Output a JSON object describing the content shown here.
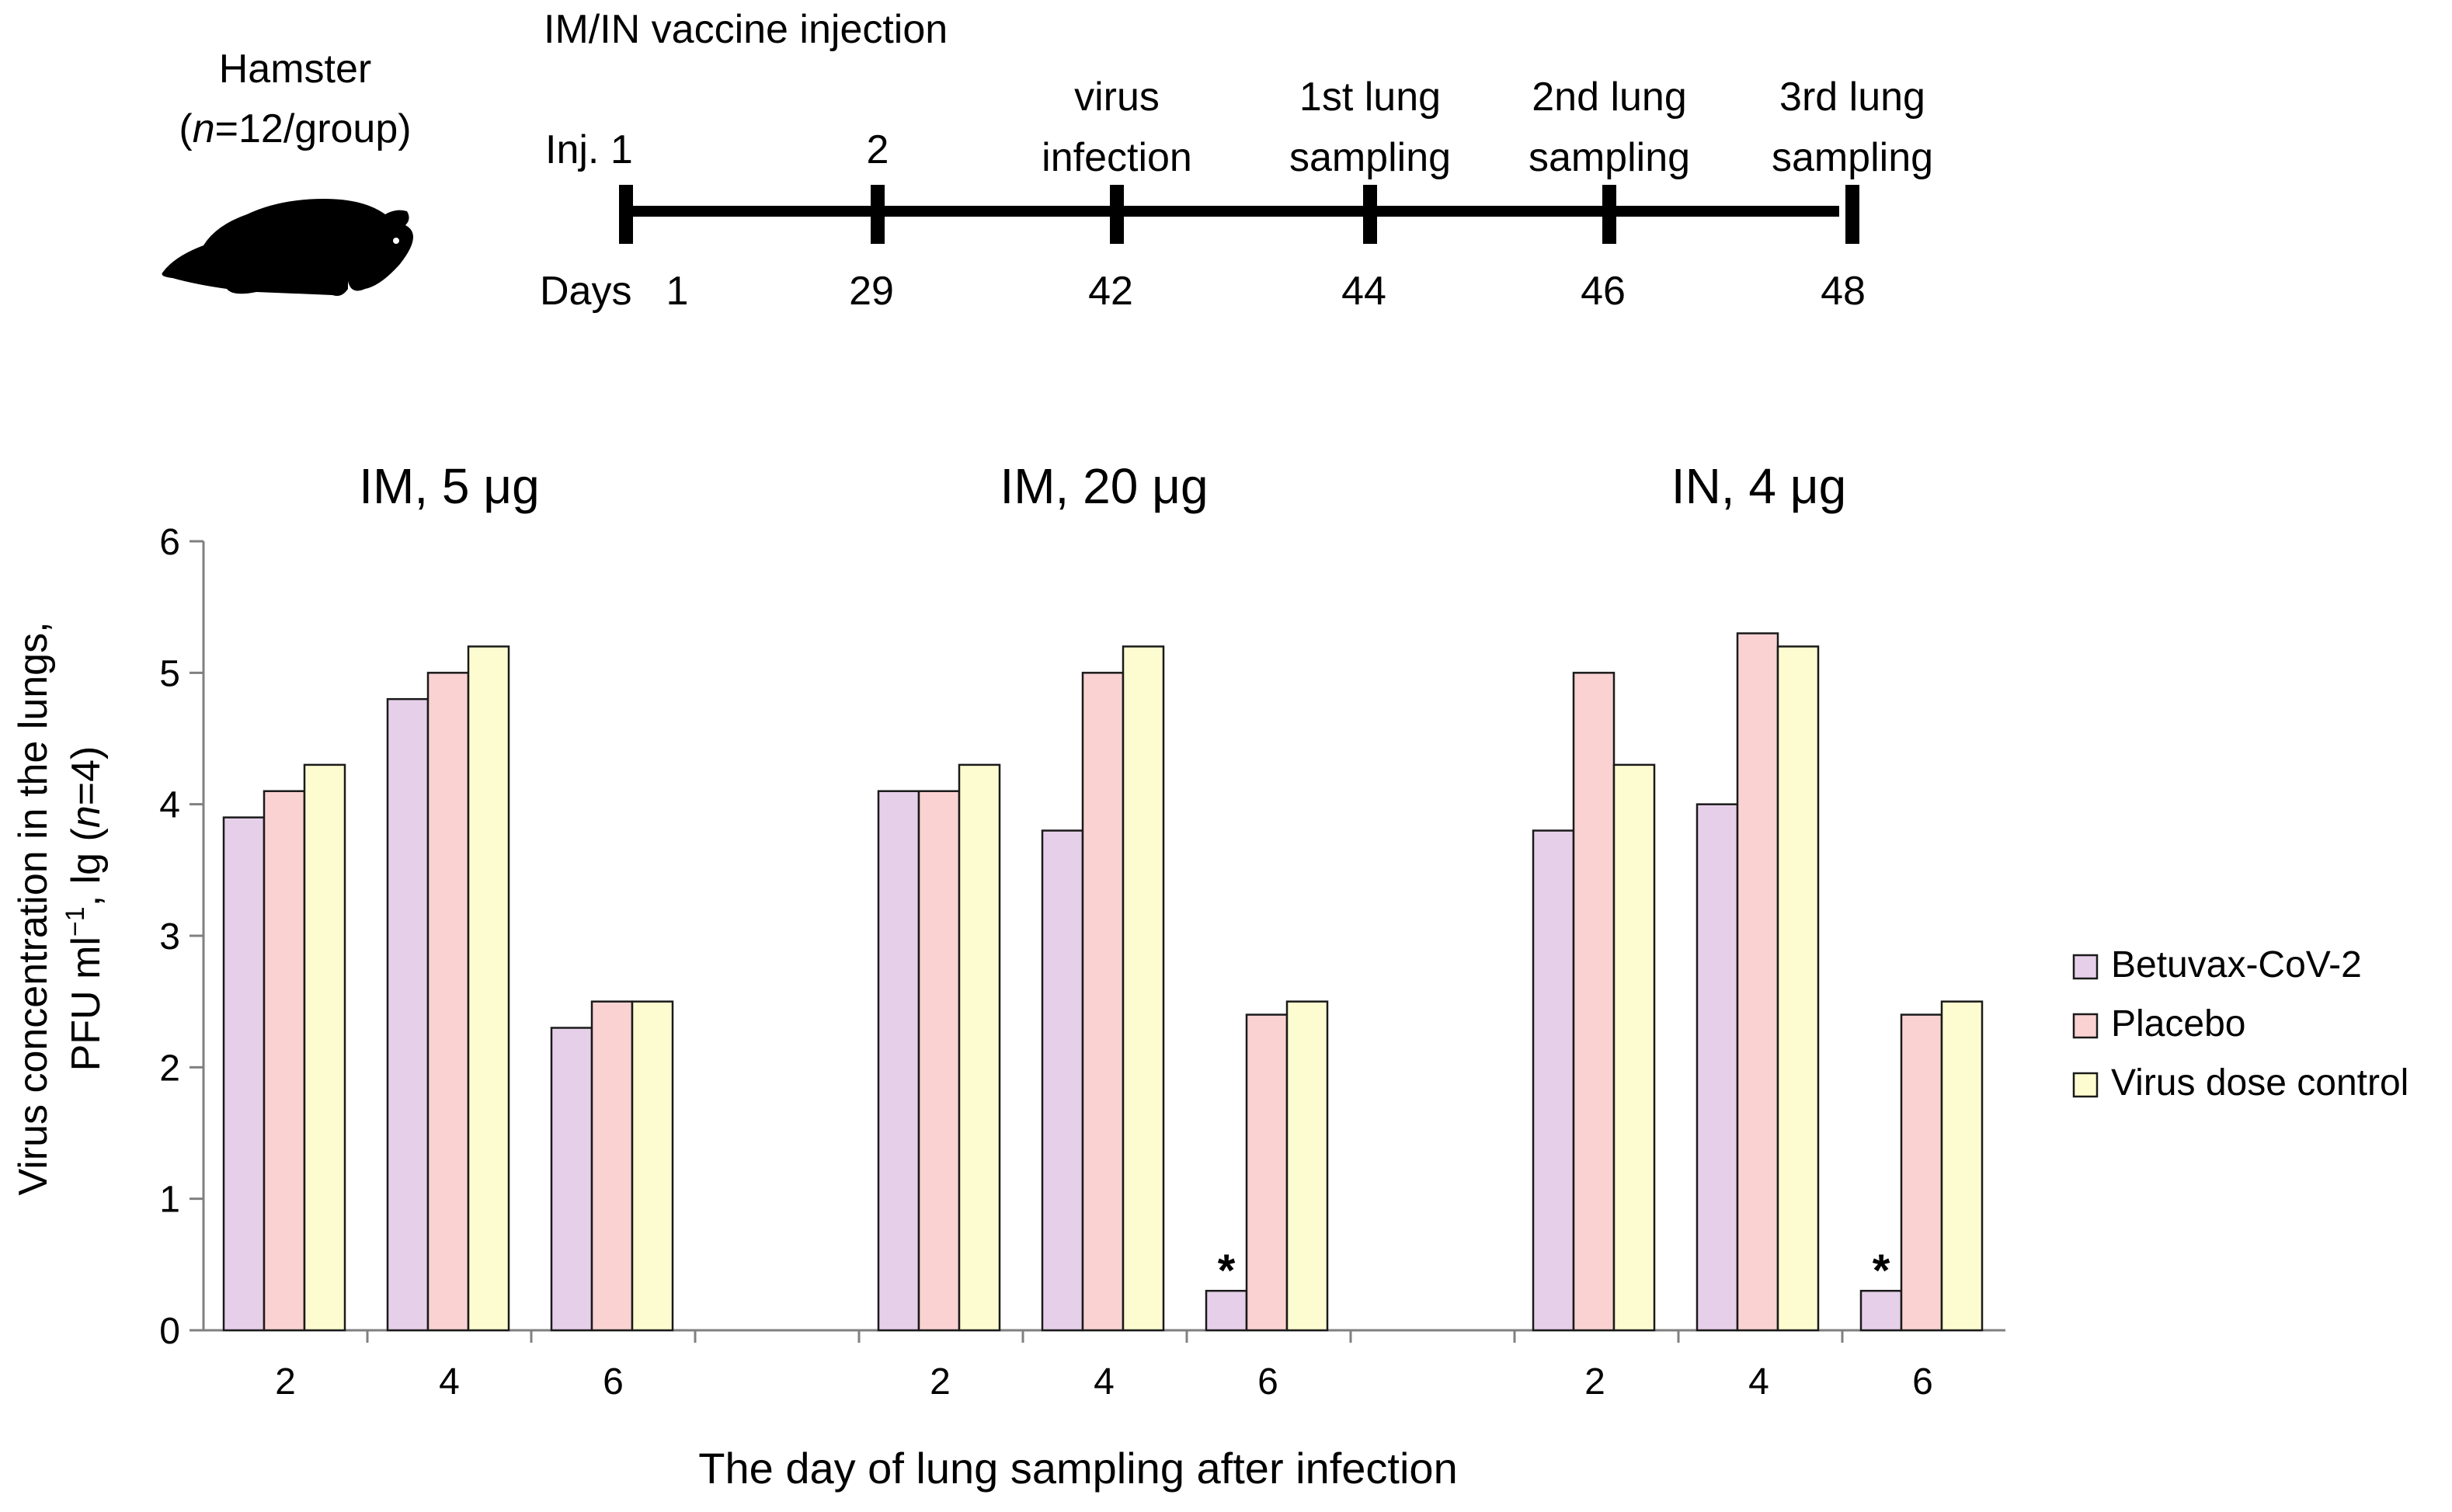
{
  "timeline": {
    "animal_label": "Hamster",
    "group_size": {
      "n_italic": "n",
      "rest": "=12/group"
    },
    "group_open": "(",
    "group_close": ")",
    "title": "IM/IN vaccine injection",
    "days_prefix": "Days",
    "events": [
      {
        "label_lines": [
          "Inj. 1"
        ],
        "day": 1
      },
      {
        "label_lines": [
          "2"
        ],
        "day": 29
      },
      {
        "label_lines": [
          "virus",
          "infection"
        ],
        "day": 42
      },
      {
        "label_lines": [
          "1st lung",
          "sampling"
        ],
        "day": 44
      },
      {
        "label_lines": [
          "2nd lung",
          "sampling"
        ],
        "day": 46
      },
      {
        "label_lines": [
          "3rd lung",
          "sampling"
        ],
        "day": 48
      }
    ]
  },
  "chart_data": {
    "type": "bar",
    "ylabel_line1": "Virus concentration in the lungs,",
    "ylabel_line2": {
      "pre": "PFU ml",
      "sup": "−1",
      "mid": ", lg (",
      "ital": "n",
      "post": "=4)"
    },
    "xlabel": "The day of lung sampling after infection",
    "ylim": [
      0,
      6
    ],
    "yticks": [
      0,
      1,
      2,
      3,
      4,
      5,
      6
    ],
    "groups": [
      {
        "title": "IM, 5 μg",
        "categories": [
          "2",
          "4",
          "6"
        ]
      },
      {
        "title": "IM, 20 μg",
        "categories": [
          "2",
          "4",
          "6"
        ]
      },
      {
        "title": "IN, 4 μg",
        "categories": [
          "2",
          "4",
          "6"
        ]
      }
    ],
    "series": [
      {
        "name": "Betuvax-CoV-2",
        "color": "#e6d0e9",
        "values": [
          3.9,
          4.8,
          2.3,
          4.1,
          3.8,
          0.3,
          3.8,
          4.0,
          0.3
        ]
      },
      {
        "name": "Placebo",
        "color": "#fad2d2",
        "values": [
          4.1,
          5.0,
          2.5,
          4.1,
          5.0,
          2.4,
          5.0,
          5.3,
          2.4
        ]
      },
      {
        "name": "Virus dose control",
        "color": "#fcfcd0",
        "values": [
          4.3,
          5.2,
          2.5,
          4.3,
          5.2,
          2.5,
          4.3,
          5.2,
          2.5
        ]
      }
    ],
    "annotations": [
      {
        "text": "*",
        "group": 1,
        "category": 2,
        "series": 0
      },
      {
        "text": "*",
        "group": 2,
        "category": 2,
        "series": 0
      }
    ]
  }
}
